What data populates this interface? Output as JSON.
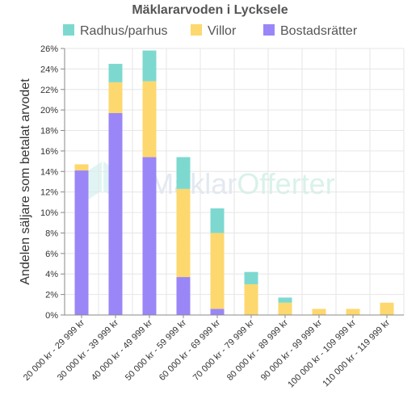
{
  "chart_data": {
    "type": "bar",
    "stacked": true,
    "title": "Mäklararvoden i Lycksele",
    "ylabel": "Andelen säljare som betalat arvodet",
    "xlabel": "",
    "ylim": [
      0,
      26
    ],
    "ytick_step": 2,
    "ytick_suffix": "%",
    "grid": true,
    "legend_position": "top",
    "categories": [
      "20 000 kr - 29 999 kr",
      "30 000 kr - 39 999 kr",
      "40 000 kr - 49 999 kr",
      "50 000 kr - 59 999 kr",
      "60 000 kr - 69 999 kr",
      "70 000 kr - 79 999 kr",
      "80 000 kr - 89 999 kr",
      "90 000 kr - 99 999 kr",
      "100 000 kr - 109 999 kr",
      "110 000 kr - 119 999 kr"
    ],
    "series": [
      {
        "name": "Radhus/parhus",
        "color": "#7dd9d0",
        "values": [
          0,
          1.8,
          3.0,
          3.1,
          2.4,
          1.2,
          0.5,
          0,
          0,
          0
        ]
      },
      {
        "name": "Villor",
        "color": "#fdd86e",
        "values": [
          0.6,
          3.0,
          7.4,
          8.6,
          7.4,
          3.0,
          1.2,
          0.6,
          0.6,
          1.2
        ]
      },
      {
        "name": "Bostadsrätter",
        "color": "#9b86f7",
        "values": [
          14.1,
          19.7,
          15.4,
          3.7,
          0.6,
          0,
          0,
          0,
          0,
          0
        ]
      }
    ],
    "watermark": "MäklarOfferter"
  }
}
